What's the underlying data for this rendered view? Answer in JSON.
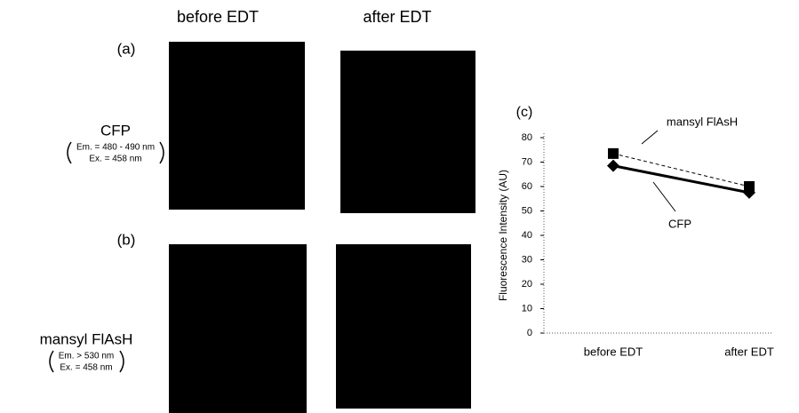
{
  "figure": {
    "columns": [
      "before EDT",
      "after EDT"
    ],
    "rows": [
      {
        "label": "(a)",
        "name": "CFP",
        "em": "Em. = 480 - 490 nm",
        "ex": "Ex. = 458 nm"
      },
      {
        "label": "(b)",
        "name": "mansyl FlAsH",
        "em": "Em. > 530 nm",
        "ex": "Ex. = 458 nm"
      }
    ]
  },
  "chart_data": {
    "type": "line",
    "panel_label": "(c)",
    "y_label": "Fluorescence Intensity (AU)",
    "categories": [
      "before EDT",
      "after EDT"
    ],
    "series": [
      {
        "name": "mansyl FlAsH",
        "color": "#000000",
        "line_style": "dashed",
        "marker": "square",
        "values": [
          73.5,
          60
        ]
      },
      {
        "name": "CFP",
        "color": "#000000",
        "line_style": "solid",
        "marker": "diamond",
        "values": [
          68.5,
          57.5
        ]
      }
    ],
    "ylim": [
      0,
      80
    ],
    "yticks": [
      0,
      10,
      20,
      30,
      40,
      50,
      60,
      70,
      80
    ]
  }
}
